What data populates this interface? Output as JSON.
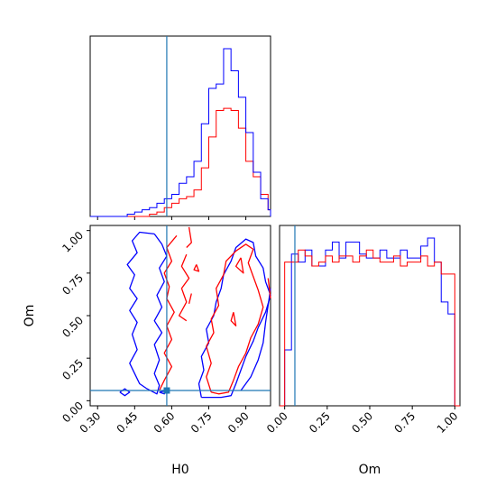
{
  "chart_data": [
    {
      "type": "histogram",
      "panel": "H0 marginal",
      "xlim": [
        0.27,
        1.0
      ],
      "bin_edges": [
        0.27,
        0.3,
        0.33,
        0.36,
        0.39,
        0.42,
        0.45,
        0.48,
        0.51,
        0.54,
        0.57,
        0.6,
        0.63,
        0.66,
        0.69,
        0.72,
        0.75,
        0.78,
        0.81,
        0.84,
        0.87,
        0.9,
        0.93,
        0.96,
        0.99,
        1.0
      ],
      "series": [
        {
          "color": "#ff0000",
          "values": [
            0,
            0,
            0,
            0,
            0,
            0,
            0,
            0,
            1,
            2,
            4,
            6,
            8,
            9,
            12,
            22,
            36,
            48,
            49,
            48,
            40,
            25,
            18,
            10,
            3
          ]
        },
        {
          "color": "#0000ff",
          "values": [
            0,
            0,
            0,
            0,
            0,
            1,
            2,
            3,
            4,
            6,
            8,
            10,
            15,
            18,
            25,
            42,
            58,
            60,
            76,
            66,
            54,
            38,
            20,
            8,
            3
          ]
        }
      ],
      "truth_x": 0.58
    },
    {
      "type": "contour",
      "panel": "H0 vs Om",
      "xlabel": "H0",
      "ylabel": "Om",
      "xlim": [
        0.27,
        1.0
      ],
      "ylim": [
        -0.03,
        1.03
      ],
      "xticks": [
        "0.30",
        "0.45",
        "0.60",
        "0.75",
        "0.90"
      ],
      "yticks": [
        "0.00",
        "0.25",
        "0.50",
        "0.75",
        "1.00"
      ],
      "truth": {
        "x": 0.58,
        "y": 0.06
      },
      "series": [
        {
          "color": "#0000ff",
          "contours": [
            [
              [
                0.53,
                0.98
              ],
              [
                0.47,
                0.99
              ],
              [
                0.44,
                0.94
              ],
              [
                0.46,
                0.87
              ],
              [
                0.42,
                0.8
              ],
              [
                0.45,
                0.74
              ],
              [
                0.43,
                0.66
              ],
              [
                0.46,
                0.6
              ],
              [
                0.43,
                0.53
              ],
              [
                0.46,
                0.46
              ],
              [
                0.44,
                0.39
              ],
              [
                0.46,
                0.3
              ],
              [
                0.43,
                0.22
              ],
              [
                0.45,
                0.16
              ],
              [
                0.47,
                0.1
              ],
              [
                0.5,
                0.07
              ],
              [
                0.54,
                0.04
              ],
              [
                0.55,
                0.09
              ],
              [
                0.53,
                0.16
              ],
              [
                0.55,
                0.24
              ],
              [
                0.53,
                0.33
              ],
              [
                0.56,
                0.4
              ],
              [
                0.53,
                0.47
              ],
              [
                0.56,
                0.55
              ],
              [
                0.54,
                0.62
              ],
              [
                0.57,
                0.7
              ],
              [
                0.55,
                0.78
              ],
              [
                0.58,
                0.85
              ],
              [
                0.56,
                0.92
              ],
              [
                0.53,
                0.98
              ]
            ],
            [
              [
                0.39,
                0.05
              ],
              [
                0.41,
                0.07
              ],
              [
                0.43,
                0.05
              ],
              [
                0.41,
                0.03
              ],
              [
                0.39,
                0.05
              ]
            ],
            [
              [
                0.55,
                0.05
              ],
              [
                0.58,
                0.06
              ],
              [
                0.57,
                0.04
              ],
              [
                0.55,
                0.05
              ]
            ],
            [
              [
                0.72,
                0.02
              ],
              [
                0.71,
                0.1
              ],
              [
                0.73,
                0.18
              ],
              [
                0.72,
                0.26
              ],
              [
                0.75,
                0.34
              ],
              [
                0.74,
                0.42
              ],
              [
                0.77,
                0.5
              ],
              [
                0.78,
                0.58
              ],
              [
                0.8,
                0.66
              ],
              [
                0.81,
                0.74
              ],
              [
                0.84,
                0.82
              ],
              [
                0.86,
                0.9
              ],
              [
                0.9,
                0.95
              ],
              [
                0.93,
                0.93
              ],
              [
                0.94,
                0.85
              ],
              [
                0.97,
                0.78
              ],
              [
                0.98,
                0.7
              ],
              [
                1.0,
                0.62
              ],
              [
                0.98,
                0.52
              ],
              [
                0.95,
                0.43
              ],
              [
                0.93,
                0.35
              ],
              [
                0.9,
                0.26
              ],
              [
                0.88,
                0.18
              ],
              [
                0.86,
                0.1
              ],
              [
                0.84,
                0.03
              ],
              [
                0.8,
                0.02
              ],
              [
                0.76,
                0.02
              ],
              [
                0.72,
                0.02
              ]
            ],
            [
              [
                0.88,
                0.06
              ],
              [
                0.92,
                0.14
              ],
              [
                0.95,
                0.24
              ],
              [
                0.97,
                0.34
              ],
              [
                0.98,
                0.46
              ],
              [
                0.99,
                0.56
              ],
              [
                1.0,
                0.66
              ]
            ]
          ]
        },
        {
          "color": "#ff0000",
          "contours": [
            [
              [
                0.62,
                0.97
              ],
              [
                0.58,
                0.9
              ],
              [
                0.6,
                0.82
              ],
              [
                0.57,
                0.75
              ],
              [
                0.59,
                0.67
              ],
              [
                0.58,
                0.6
              ],
              [
                0.61,
                0.52
              ],
              [
                0.58,
                0.44
              ],
              [
                0.6,
                0.36
              ],
              [
                0.57,
                0.28
              ],
              [
                0.6,
                0.2
              ],
              [
                0.57,
                0.12
              ],
              [
                0.55,
                0.06
              ]
            ],
            [
              [
                0.66,
                0.86
              ],
              [
                0.64,
                0.79
              ],
              [
                0.67,
                0.72
              ],
              [
                0.64,
                0.66
              ],
              [
                0.66,
                0.58
              ],
              [
                0.63,
                0.5
              ],
              [
                0.66,
                0.47
              ]
            ],
            [
              [
                0.67,
                1.02
              ],
              [
                0.68,
                0.93
              ],
              [
                0.66,
                0.9
              ]
            ],
            [
              [
                0.7,
                0.8
              ],
              [
                0.71,
                0.76
              ],
              [
                0.69,
                0.77
              ],
              [
                0.7,
                0.8
              ]
            ],
            [
              [
                0.68,
                0.63
              ],
              [
                0.67,
                0.57
              ]
            ],
            [
              [
                0.76,
                0.05
              ],
              [
                0.74,
                0.14
              ],
              [
                0.76,
                0.22
              ],
              [
                0.74,
                0.32
              ],
              [
                0.77,
                0.4
              ],
              [
                0.76,
                0.48
              ],
              [
                0.79,
                0.56
              ],
              [
                0.78,
                0.66
              ],
              [
                0.81,
                0.74
              ],
              [
                0.82,
                0.82
              ],
              [
                0.86,
                0.88
              ],
              [
                0.9,
                0.92
              ],
              [
                0.93,
                0.89
              ],
              [
                0.91,
                0.81
              ],
              [
                0.93,
                0.73
              ],
              [
                0.95,
                0.65
              ],
              [
                0.97,
                0.55
              ],
              [
                0.95,
                0.45
              ],
              [
                0.92,
                0.37
              ],
              [
                0.9,
                0.28
              ],
              [
                0.87,
                0.2
              ],
              [
                0.85,
                0.12
              ],
              [
                0.83,
                0.05
              ],
              [
                0.79,
                0.04
              ],
              [
                0.76,
                0.05
              ]
            ],
            [
              [
                0.85,
                0.52
              ],
              [
                0.84,
                0.47
              ],
              [
                0.86,
                0.44
              ],
              [
                0.85,
                0.52
              ]
            ],
            [
              [
                0.88,
                0.84
              ],
              [
                0.86,
                0.79
              ],
              [
                0.89,
                0.75
              ],
              [
                0.88,
                0.84
              ]
            ],
            [
              [
                0.99,
                0.72
              ],
              [
                1.0,
                0.6
              ]
            ]
          ]
        }
      ]
    },
    {
      "type": "histogram",
      "panel": "Om marginal",
      "xlabel": "Om",
      "xlim": [
        -0.03,
        1.03
      ],
      "xticks": [
        "0.00",
        "0.25",
        "0.50",
        "0.75",
        "1.00"
      ],
      "bin_edges": [
        -0.03,
        0.0,
        0.04,
        0.08,
        0.12,
        0.16,
        0.2,
        0.24,
        0.28,
        0.32,
        0.36,
        0.4,
        0.44,
        0.48,
        0.52,
        0.56,
        0.6,
        0.64,
        0.68,
        0.72,
        0.76,
        0.8,
        0.84,
        0.88,
        0.92,
        0.96,
        1.0,
        1.03
      ],
      "series": [
        {
          "color": "#0000ff",
          "values": [
            0,
            0.28,
            0.76,
            0.72,
            0.78,
            0.7,
            0.7,
            0.78,
            0.82,
            0.74,
            0.82,
            0.82,
            0.76,
            0.74,
            0.74,
            0.78,
            0.74,
            0.74,
            0.78,
            0.74,
            0.74,
            0.8,
            0.84,
            0.72,
            0.52,
            0.46,
            0
          ]
        },
        {
          "color": "#ff0000",
          "values": [
            0,
            0.72,
            0.72,
            0.78,
            0.75,
            0.7,
            0.72,
            0.75,
            0.72,
            0.75,
            0.75,
            0.72,
            0.75,
            0.78,
            0.74,
            0.72,
            0.72,
            0.75,
            0.7,
            0.72,
            0.72,
            0.75,
            0.7,
            0.72,
            0.66,
            0.66,
            0
          ]
        }
      ],
      "truth_x": 0.06
    }
  ]
}
